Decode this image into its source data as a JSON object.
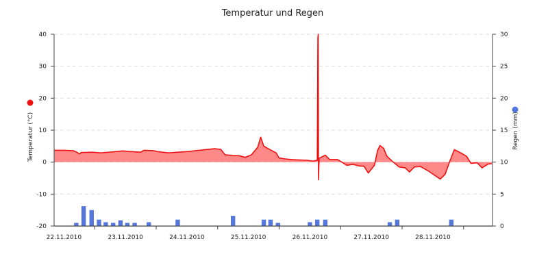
{
  "chart_data": {
    "type": "area",
    "title": "Temperatur und Regen",
    "x_tick_labels": [
      "22.11.2010",
      "23.11.2010",
      "24.11.2010",
      "25.11.2010",
      "26.11.2010",
      "27.11.2010",
      "28.11.2010"
    ],
    "x_range": [
      0,
      7
    ],
    "y_left": {
      "label": "Temperatur (°C)",
      "range": [
        -20,
        40
      ],
      "ticks": [
        -20,
        -10,
        0,
        10,
        20,
        30,
        40
      ],
      "tick_labels": [
        "-20",
        "-10",
        "0",
        "10",
        "20",
        "30",
        "40"
      ],
      "marker_color": "#ee1111"
    },
    "y_right": {
      "label": "Regen (mm)",
      "range": [
        0,
        30
      ],
      "ticks": [
        0,
        5,
        10,
        15,
        20,
        25,
        30
      ],
      "tick_labels": [
        "0",
        "5",
        "10",
        "15",
        "20",
        "25",
        "30"
      ],
      "marker_color": "#5577dd"
    },
    "grid": "horizontal-dashed",
    "series": [
      {
        "kind": "temperature",
        "color": "#ee1111",
        "fill_color": "#ff8888",
        "points": [
          [
            -0.16,
            3.7
          ],
          [
            0.0,
            3.7
          ],
          [
            0.15,
            3.6
          ],
          [
            0.2,
            3.2
          ],
          [
            0.25,
            2.6
          ],
          [
            0.28,
            3.0
          ],
          [
            0.45,
            3.1
          ],
          [
            0.6,
            2.9
          ],
          [
            0.8,
            3.2
          ],
          [
            0.95,
            3.5
          ],
          [
            1.1,
            3.3
          ],
          [
            1.25,
            3.1
          ],
          [
            1.3,
            3.7
          ],
          [
            1.45,
            3.6
          ],
          [
            1.55,
            3.2
          ],
          [
            1.7,
            2.9
          ],
          [
            1.85,
            3.1
          ],
          [
            2.0,
            3.3
          ],
          [
            2.15,
            3.6
          ],
          [
            2.3,
            3.9
          ],
          [
            2.45,
            4.2
          ],
          [
            2.55,
            4.0
          ],
          [
            2.62,
            2.3
          ],
          [
            2.75,
            2.1
          ],
          [
            2.85,
            2.0
          ],
          [
            2.95,
            1.5
          ],
          [
            3.05,
            2.3
          ],
          [
            3.15,
            4.6
          ],
          [
            3.2,
            7.8
          ],
          [
            3.25,
            5.0
          ],
          [
            3.35,
            3.9
          ],
          [
            3.45,
            2.9
          ],
          [
            3.5,
            1.3
          ],
          [
            3.6,
            1.0
          ],
          [
            3.7,
            0.8
          ],
          [
            3.8,
            0.7
          ],
          [
            3.95,
            0.6
          ],
          [
            4.05,
            0.3
          ],
          [
            4.12,
            0.6
          ],
          [
            4.13,
            38.8
          ],
          [
            4.135,
            40.0
          ],
          [
            4.14,
            -5.5
          ],
          [
            4.15,
            1.2
          ],
          [
            4.25,
            2.2
          ],
          [
            4.32,
            0.8
          ],
          [
            4.45,
            0.8
          ],
          [
            4.52,
            0.0
          ],
          [
            4.6,
            -1.0
          ],
          [
            4.7,
            -0.7
          ],
          [
            4.8,
            -1.2
          ],
          [
            4.88,
            -1.3
          ],
          [
            4.95,
            -3.4
          ],
          [
            5.05,
            -1.0
          ],
          [
            5.1,
            3.6
          ],
          [
            5.14,
            5.2
          ],
          [
            5.2,
            4.3
          ],
          [
            5.25,
            1.9
          ],
          [
            5.35,
            0.1
          ],
          [
            5.45,
            -1.5
          ],
          [
            5.55,
            -1.8
          ],
          [
            5.62,
            -3.1
          ],
          [
            5.7,
            -1.5
          ],
          [
            5.8,
            -1.4
          ],
          [
            5.92,
            -2.7
          ],
          [
            6.05,
            -4.4
          ],
          [
            6.12,
            -5.3
          ],
          [
            6.2,
            -3.8
          ],
          [
            6.28,
            0.5
          ],
          [
            6.35,
            3.9
          ],
          [
            6.45,
            2.9
          ],
          [
            6.55,
            1.8
          ],
          [
            6.62,
            -0.4
          ],
          [
            6.72,
            -0.2
          ],
          [
            6.8,
            -1.8
          ],
          [
            6.9,
            -0.6
          ],
          [
            6.96,
            -0.5
          ]
        ]
      },
      {
        "kind": "rain",
        "color": "#5577dd",
        "bars": [
          [
            0.2,
            0.5
          ],
          [
            0.32,
            3.1
          ],
          [
            0.45,
            2.5
          ],
          [
            0.57,
            1.0
          ],
          [
            0.68,
            0.6
          ],
          [
            0.8,
            0.5
          ],
          [
            0.92,
            0.9
          ],
          [
            1.03,
            0.5
          ],
          [
            1.15,
            0.5
          ],
          [
            1.38,
            0.6
          ],
          [
            1.85,
            1.0
          ],
          [
            2.75,
            1.6
          ],
          [
            3.25,
            1.0
          ],
          [
            3.36,
            1.0
          ],
          [
            3.48,
            0.5
          ],
          [
            4.0,
            0.6
          ],
          [
            4.12,
            1.0
          ],
          [
            4.25,
            1.0
          ],
          [
            5.3,
            0.6
          ],
          [
            5.42,
            1.0
          ],
          [
            6.3,
            1.0
          ]
        ]
      }
    ]
  }
}
